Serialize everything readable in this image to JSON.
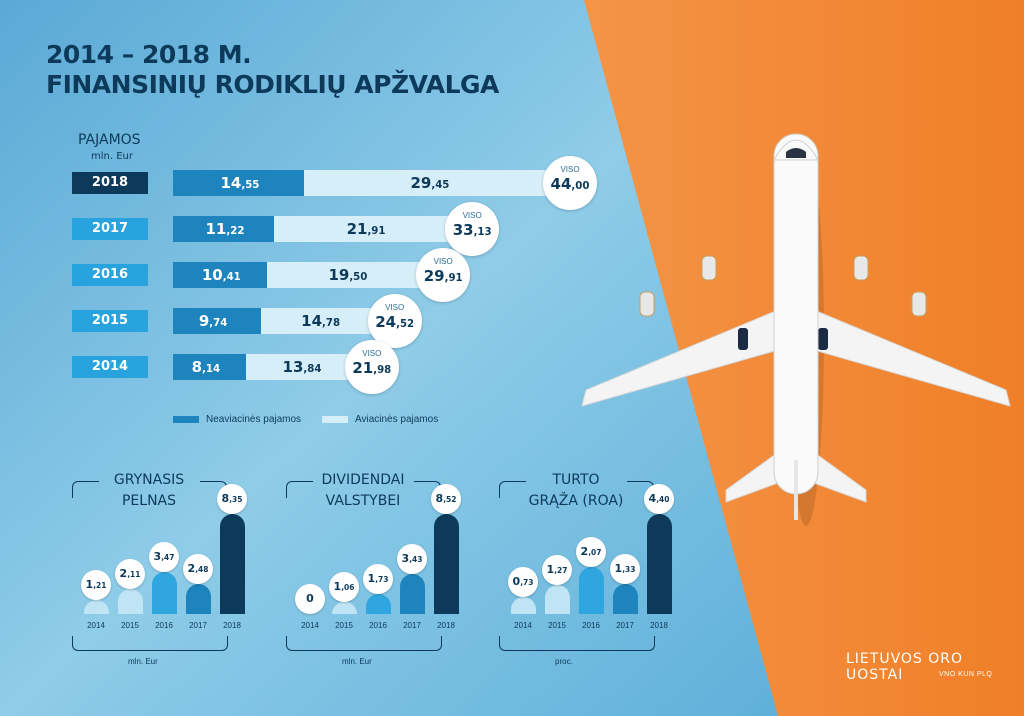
{
  "header": {
    "line1": "2014 – 2018 M.",
    "line2": "FINANSINIŲ RODIKLIŲ APŽVALGA"
  },
  "colors": {
    "background_blue": "#7ec3e2",
    "background_orange": "#f28a3a",
    "dark_navy": "#0d3a5a",
    "bar_dark": "#1e84bd",
    "bar_light": "#d6eef8",
    "year_box": "#29a3dd"
  },
  "chart_data": [
    {
      "type": "bar",
      "orientation": "horizontal",
      "stacked": true,
      "title": "PAJAMOS",
      "unit": "mln. Eur",
      "categories": [
        "2018",
        "2017",
        "2016",
        "2015",
        "2014"
      ],
      "series": [
        {
          "name": "Neaviacinės pajamos",
          "values": [
            14.55,
            11.22,
            10.41,
            9.74,
            8.14
          ],
          "labels": [
            "14,55",
            "11,22",
            "10,41",
            "9,74",
            "8,14"
          ]
        },
        {
          "name": "Aviacinės pajamos",
          "values": [
            29.45,
            21.91,
            19.5,
            14.78,
            13.84
          ],
          "labels": [
            "29,45",
            "21,91",
            "19,50",
            "14,78",
            "13,84"
          ]
        }
      ],
      "totals_label": "VISO",
      "totals": [
        44.0,
        33.13,
        29.91,
        24.52,
        21.98
      ],
      "totals_labels": [
        "44,00",
        "33,13",
        "29,91",
        "24,52",
        "21,98"
      ],
      "legend_position": "bottom"
    },
    {
      "type": "bar",
      "title": "GRYNASIS PELNAS",
      "unit": "mln. Eur",
      "categories": [
        "2014",
        "2015",
        "2016",
        "2017",
        "2018"
      ],
      "values": [
        1.21,
        2.11,
        3.47,
        2.48,
        8.35
      ],
      "labels": [
        "1,21",
        "2,11",
        "3,47",
        "2,48",
        "8,35"
      ]
    },
    {
      "type": "bar",
      "title": "DIVIDENDAI VALSTYBEI",
      "unit": "mln. Eur",
      "categories": [
        "2014",
        "2015",
        "2016",
        "2017",
        "2018"
      ],
      "values": [
        0,
        1.06,
        1.73,
        3.43,
        8.52
      ],
      "labels": [
        "0",
        "1,06",
        "1,73",
        "3,43",
        "8,52"
      ]
    },
    {
      "type": "bar",
      "title": "TURTO GRĄŽA (ROA)",
      "unit": "proc.",
      "categories": [
        "2014",
        "2015",
        "2016",
        "2017",
        "2018"
      ],
      "values": [
        0.73,
        1.27,
        2.07,
        1.33,
        4.4
      ],
      "labels": [
        "0,73",
        "1,27",
        "2,07",
        "1,33",
        "4,40"
      ]
    }
  ],
  "small_titles": [
    [
      "GRYNASIS",
      "PELNAS"
    ],
    [
      "DIVIDENDAI",
      "VALSTYBEI"
    ],
    [
      "TURTO",
      "GRĄŽA (ROA)"
    ]
  ],
  "logo": {
    "name": "LIETUVOS ORO UOSTAI",
    "codes": "VNO KUN PLQ"
  }
}
